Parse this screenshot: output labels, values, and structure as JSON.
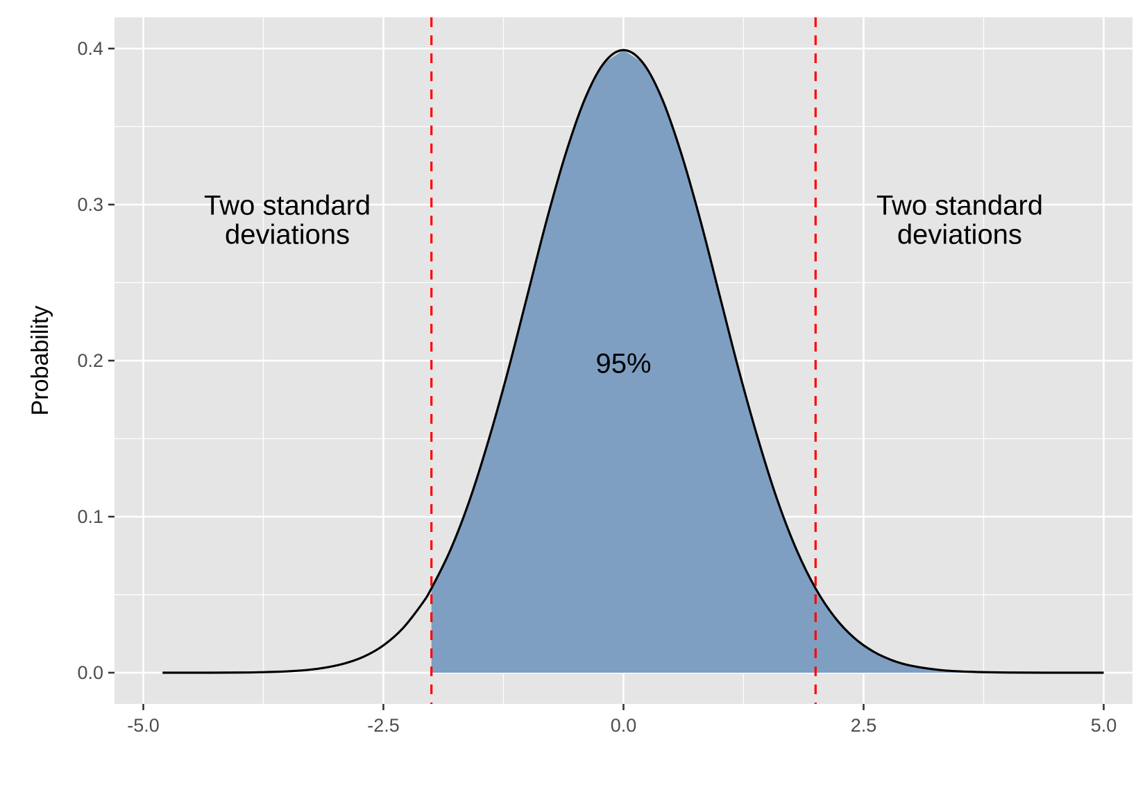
{
  "chart_data": {
    "type": "area",
    "title": "",
    "xlabel": "",
    "ylabel": "Probability",
    "xlim": [
      -5.3,
      5.3
    ],
    "ylim": [
      -0.02,
      0.42
    ],
    "x_ticks": [
      -5.0,
      -2.5,
      0.0,
      2.5,
      5.0
    ],
    "x_tick_labels": [
      "-5.0",
      "-2.5",
      "0.0",
      "2.5",
      "5.0"
    ],
    "y_ticks": [
      0.0,
      0.1,
      0.2,
      0.3,
      0.4
    ],
    "y_tick_labels": [
      "0.0",
      "0.1",
      "0.2",
      "0.3",
      "0.4"
    ],
    "grid": true,
    "series": [
      {
        "x": [
          -4.8,
          -4.4,
          -4.0,
          -3.6,
          -3.3,
          -3.1,
          -2.9,
          -2.7,
          -2.5,
          -2.3,
          -2.1,
          -2.0,
          -1.8,
          -1.6,
          -1.4,
          -1.2,
          -1.0,
          -0.8,
          -0.6,
          -0.4,
          -0.2,
          0.0,
          0.2,
          0.4,
          0.6,
          0.8,
          1.0,
          1.2,
          1.4,
          1.6,
          1.8,
          2.0,
          2.2,
          2.4,
          2.6,
          2.8,
          3.0,
          3.3,
          3.6,
          4.0,
          4.4,
          4.8,
          5.0
        ],
        "y": [
          0.0,
          0.0,
          0.0001,
          0.0006,
          0.0017,
          0.0033,
          0.006,
          0.0104,
          0.0175,
          0.0283,
          0.044,
          0.054,
          0.079,
          0.111,
          0.15,
          0.194,
          0.242,
          0.29,
          0.333,
          0.368,
          0.391,
          0.399,
          0.391,
          0.368,
          0.333,
          0.29,
          0.242,
          0.194,
          0.15,
          0.111,
          0.079,
          0.054,
          0.0355,
          0.0224,
          0.0136,
          0.0079,
          0.0044,
          0.0017,
          0.0006,
          0.0001,
          0.0,
          0.0,
          0.0
        ]
      }
    ],
    "shaded_interval": [
      -2,
      5
    ],
    "reference_lines": [
      {
        "x": -2
      },
      {
        "x": 2
      }
    ],
    "annotations": [
      {
        "lines": [
          "Two standard",
          "deviations"
        ],
        "x": -3.5,
        "y": 0.29
      },
      {
        "lines": [
          "95%"
        ],
        "x": 0.0,
        "y": 0.198
      },
      {
        "lines": [
          "Two standard",
          "deviations"
        ],
        "x": 3.5,
        "y": 0.29
      }
    ],
    "colors": {
      "panel_background": "#e5e5e5",
      "grid": "#ffffff",
      "fill": "#7f9fc2",
      "curve": "#000000",
      "reference_line": "#ff0000",
      "tick_text": "#4d4d4d",
      "tick_mark": "#333333"
    }
  }
}
